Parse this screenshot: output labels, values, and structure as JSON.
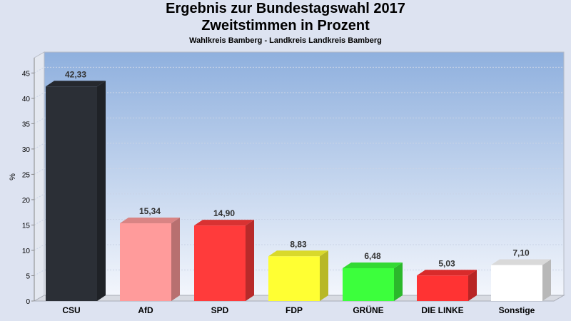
{
  "chart_data": {
    "type": "bar",
    "title_lines": [
      "Ergebnis zur Bundestagswahl 2017",
      "Zweitstimmen in Prozent"
    ],
    "subtitle": "Wahlkreis Bamberg - Landkreis Landkreis Bamberg",
    "ylabel": "%",
    "xlabel": "",
    "ylim": [
      0,
      48
    ],
    "yticks": [
      0,
      5,
      10,
      15,
      20,
      25,
      30,
      35,
      40,
      45
    ],
    "grid": true,
    "categories": [
      "CSU",
      "AfD",
      "SPD",
      "FDP",
      "GRÜNE",
      "DIE LINKE",
      "Sonstige"
    ],
    "values": [
      42.33,
      15.34,
      14.9,
      8.83,
      6.48,
      5.03,
      7.1
    ],
    "value_labels": [
      "42,33",
      "15,34",
      "14,90",
      "8,83",
      "6,48",
      "5,03",
      "7,10"
    ],
    "colors": [
      "#2b2f36",
      "#ff9b9b",
      "#ff3b3b",
      "#ffff33",
      "#3cff3c",
      "#ff3333",
      "#ffffff"
    ]
  }
}
